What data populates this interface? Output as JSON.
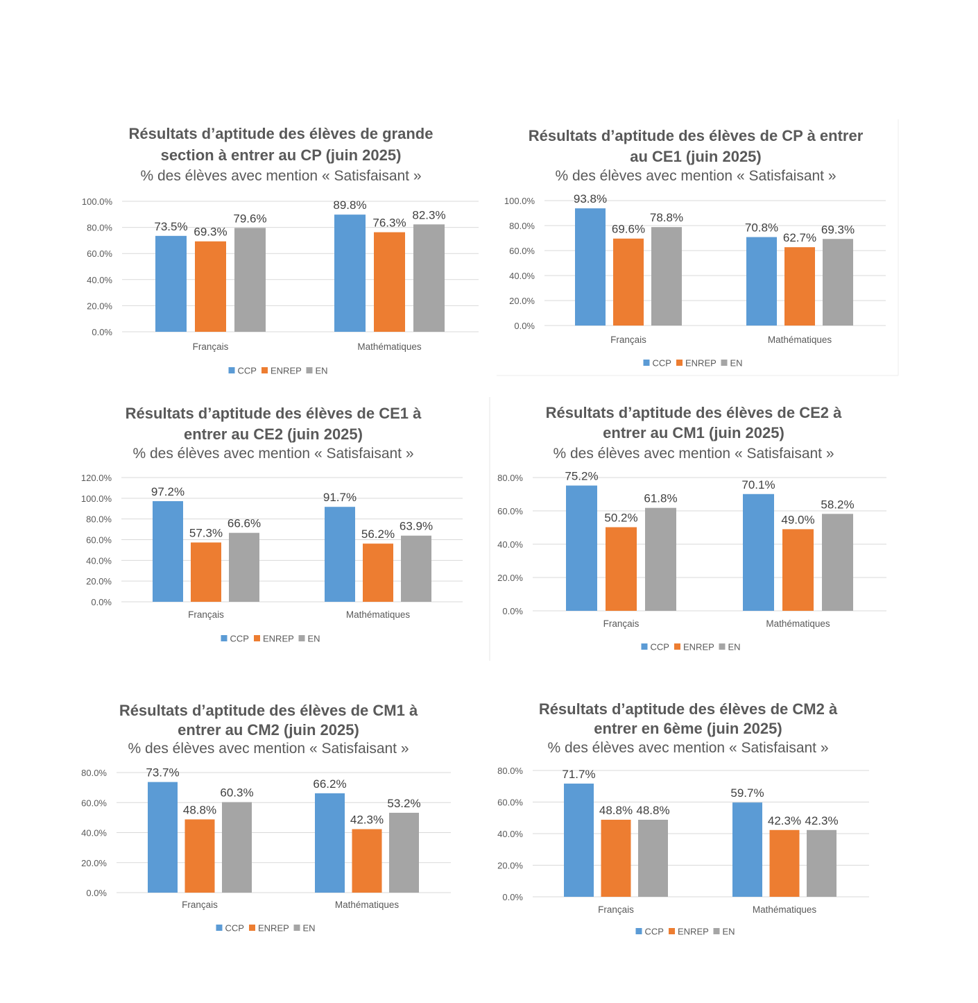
{
  "colors": {
    "CCP": "#5b9bd5",
    "ENREP": "#ed7d31",
    "EN": "#a5a5a5",
    "grid": "#d9d9d9",
    "text": "#595959"
  },
  "chart_data": [
    {
      "type": "bar",
      "title": [
        "Résultats d’aptitude des élèves de grande",
        "section à entrer au CP (juin 2025)"
      ],
      "subtitle": "% des élèves avec mention « Satisfaisant »",
      "categories": [
        "Français",
        "Mathématiques"
      ],
      "series": [
        {
          "name": "CCP",
          "values": [
            73.5,
            89.8
          ]
        },
        {
          "name": "ENREP",
          "values": [
            69.3,
            76.3
          ]
        },
        {
          "name": "EN",
          "values": [
            79.6,
            82.3
          ]
        }
      ],
      "ylim": [
        0,
        100
      ],
      "yticks": [
        "0.0%",
        "20.0%",
        "40.0%",
        "60.0%",
        "80.0%",
        "100.0%"
      ],
      "data_labels": [
        [
          "73.5%",
          "89.8%"
        ],
        [
          "69.3%",
          "76.3%"
        ],
        [
          "79.6%",
          "82.3%"
        ]
      ],
      "grid": true,
      "legend": "bottom"
    },
    {
      "type": "bar",
      "title": [
        "Résultats d’aptitude des élèves de CP à entrer",
        "au CE1 (juin 2025)"
      ],
      "subtitle": "% des élèves avec mention « Satisfaisant »",
      "categories": [
        "Français",
        "Mathématiques"
      ],
      "series": [
        {
          "name": "CCP",
          "values": [
            93.8,
            70.8
          ]
        },
        {
          "name": "ENREP",
          "values": [
            69.6,
            62.7
          ]
        },
        {
          "name": "EN",
          "values": [
            78.8,
            69.3
          ]
        }
      ],
      "ylim": [
        0,
        100
      ],
      "yticks": [
        "0.0%",
        "20.0%",
        "40.0%",
        "60.0%",
        "80.0%",
        "100.0%"
      ],
      "data_labels": [
        [
          "93.8%",
          "70.8%"
        ],
        [
          "69.6%",
          "62.7%"
        ],
        [
          "78.8%",
          "69.3%"
        ]
      ],
      "grid": true,
      "legend": "bottom"
    },
    {
      "type": "bar",
      "title": [
        "Résultats d’aptitude des élèves de CE1 à",
        "entrer au CE2 (juin 2025)"
      ],
      "subtitle": "% des élèves avec mention « Satisfaisant »",
      "categories": [
        "Français",
        "Mathématiques"
      ],
      "series": [
        {
          "name": "CCP",
          "values": [
            97.2,
            91.7
          ]
        },
        {
          "name": "ENREP",
          "values": [
            57.3,
            56.2
          ]
        },
        {
          "name": "EN",
          "values": [
            66.6,
            63.9
          ]
        }
      ],
      "ylim": [
        0,
        120
      ],
      "yticks": [
        "0.0%",
        "20.0%",
        "40.0%",
        "60.0%",
        "80.0%",
        "100.0%",
        "120.0%"
      ],
      "data_labels": [
        [
          "97.2%",
          "91.7%"
        ],
        [
          "57.3%",
          "56.2%"
        ],
        [
          "66.6%",
          "63.9%"
        ]
      ],
      "grid": true,
      "legend": "bottom"
    },
    {
      "type": "bar",
      "title": [
        "Résultats d’aptitude des élèves de CE2 à",
        "entrer au CM1 (juin 2025)"
      ],
      "subtitle": "% des élèves avec mention « Satisfaisant »",
      "categories": [
        "Français",
        "Mathématiques"
      ],
      "series": [
        {
          "name": "CCP",
          "values": [
            75.2,
            70.1
          ]
        },
        {
          "name": "ENREP",
          "values": [
            50.2,
            49.0
          ]
        },
        {
          "name": "EN",
          "values": [
            61.8,
            58.2
          ]
        }
      ],
      "ylim": [
        0,
        80
      ],
      "yticks": [
        "0.0%",
        "20.0%",
        "40.0%",
        "60.0%",
        "80.0%"
      ],
      "data_labels": [
        [
          "75.2%",
          "70.1%"
        ],
        [
          "50.2%",
          "49.0%"
        ],
        [
          "61.8%",
          "58.2%"
        ]
      ],
      "grid": true,
      "legend": "bottom"
    },
    {
      "type": "bar",
      "title": [
        "Résultats d’aptitude des élèves de CM1 à",
        "entrer au CM2 (juin 2025)"
      ],
      "subtitle": "% des élèves avec mention « Satisfaisant »",
      "categories": [
        "Français",
        "Mathématiques"
      ],
      "series": [
        {
          "name": "CCP",
          "values": [
            73.7,
            66.2
          ]
        },
        {
          "name": "ENREP",
          "values": [
            48.8,
            42.3
          ]
        },
        {
          "name": "EN",
          "values": [
            60.3,
            53.2
          ]
        }
      ],
      "ylim": [
        0,
        80
      ],
      "yticks": [
        "0.0%",
        "20.0%",
        "40.0%",
        "60.0%",
        "80.0%"
      ],
      "data_labels": [
        [
          "73.7%",
          "66.2%"
        ],
        [
          "48.8%",
          "42.3%"
        ],
        [
          "60.3%",
          "53.2%"
        ]
      ],
      "grid": true,
      "legend": "bottom"
    },
    {
      "type": "bar",
      "title": [
        "Résultats d’aptitude des élèves de CM2 à",
        "entrer en 6ème (juin 2025)"
      ],
      "subtitle": "% des élèves avec mention « Satisfaisant »",
      "categories": [
        "Français",
        "Mathématiques"
      ],
      "series": [
        {
          "name": "CCP",
          "values": [
            71.7,
            59.7
          ]
        },
        {
          "name": "ENREP",
          "values": [
            48.8,
            42.3
          ]
        },
        {
          "name": "EN",
          "values": [
            48.8,
            42.3
          ]
        }
      ],
      "ylim": [
        0,
        80
      ],
      "yticks": [
        "0.0%",
        "20.0%",
        "40.0%",
        "60.0%",
        "80.0%"
      ],
      "data_labels": [
        [
          "71.7%",
          "59.7%"
        ],
        [
          "48.8%",
          "42.3%"
        ],
        [
          "48.8%",
          "42.3%"
        ]
      ],
      "grid": true,
      "legend": "bottom"
    }
  ]
}
